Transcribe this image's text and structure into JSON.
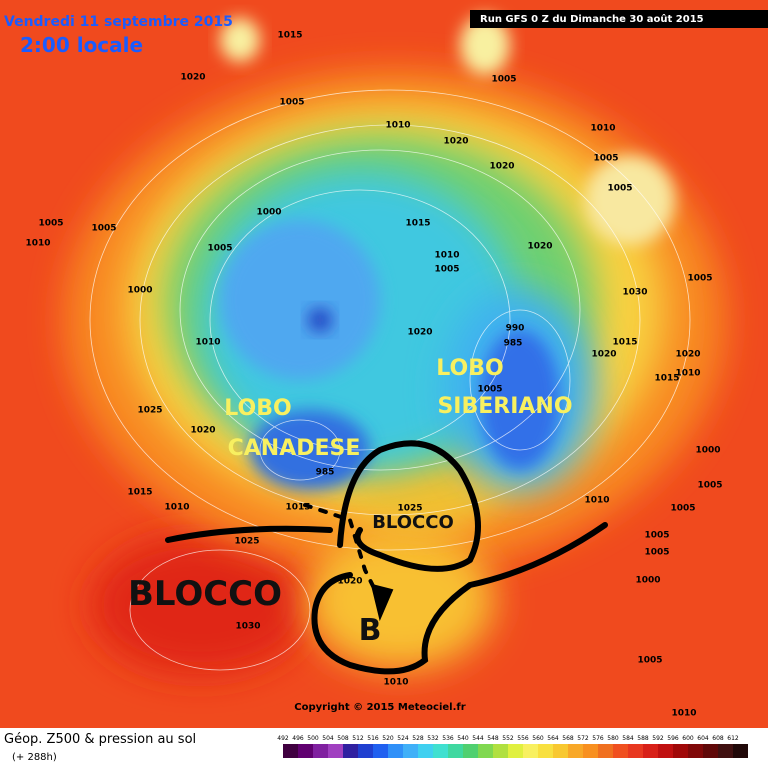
{
  "header": {
    "date": "Vendredi 11 septembre 2015",
    "time": "2:00 locale",
    "run": "Run GFS 0 Z du Dimanche 30 août 2015"
  },
  "annotations": {
    "lobo_canadese": [
      "LOBO",
      "CANADESE"
    ],
    "lobo_siberiano": [
      "LOBO",
      "SIBERIANO"
    ],
    "blocco_large": "BLOCCO",
    "blocco_small": "BLOCCO",
    "b": "B"
  },
  "pressure_labels": [
    "1015",
    "1020",
    "1005",
    "1010",
    "1020",
    "1005",
    "1010",
    "1005",
    "1020",
    "1005",
    "1005",
    "1005",
    "1010",
    "1000",
    "1005",
    "1015",
    "1020",
    "1010",
    "1005",
    "1000",
    "1010",
    "1020",
    "1015",
    "1020",
    "1020",
    "1015",
    "1010",
    "1025",
    "1020",
    "990",
    "985",
    "1005",
    "1000",
    "1005",
    "1015",
    "1010",
    "1015",
    "985",
    "1025",
    "1010",
    "1005",
    "1025",
    "1005",
    "1005",
    "1000",
    "1020",
    "1030",
    "1005",
    "1010",
    "1010",
    "1030",
    "1005"
  ],
  "copyright": "Copyright © 2015 Meteociel.fr",
  "legend": {
    "title": "Géop. Z500 & pression au sol",
    "subtitle": "(+ 288h)",
    "ticks": [
      "492",
      "496",
      "500",
      "504",
      "508",
      "512",
      "516",
      "520",
      "524",
      "528",
      "532",
      "536",
      "540",
      "544",
      "548",
      "552",
      "556",
      "560",
      "564",
      "568",
      "572",
      "576",
      "580",
      "584",
      "588",
      "592",
      "596",
      "600",
      "604",
      "608",
      "612"
    ]
  }
}
